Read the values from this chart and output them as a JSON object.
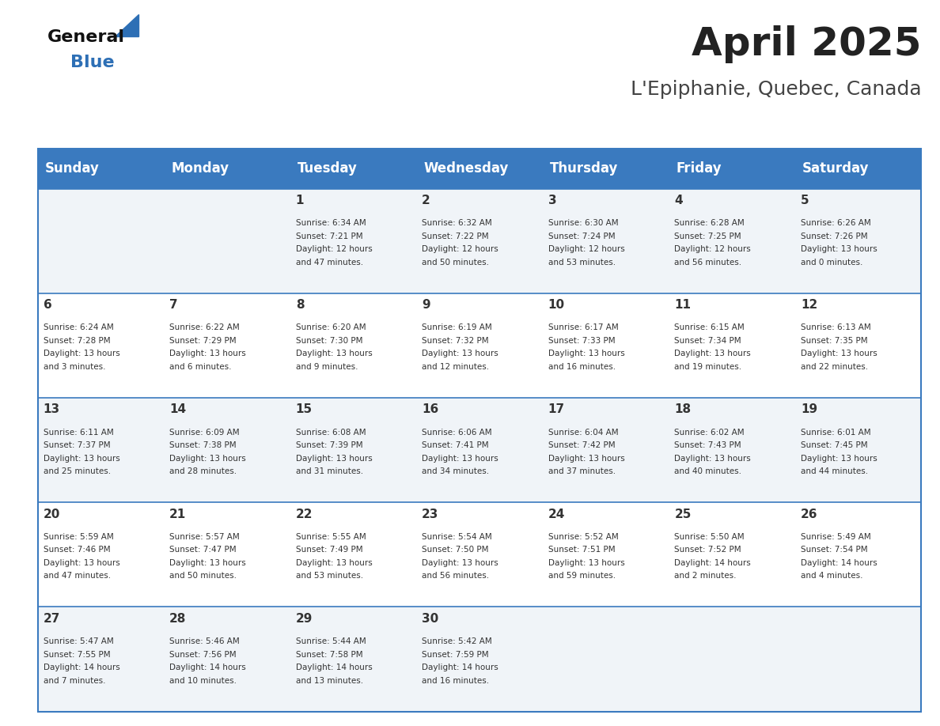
{
  "title": "April 2025",
  "subtitle": "L'Epiphanie, Quebec, Canada",
  "header_bg_color": "#3a7abf",
  "header_text_color": "#ffffff",
  "weekdays": [
    "Sunday",
    "Monday",
    "Tuesday",
    "Wednesday",
    "Thursday",
    "Friday",
    "Saturday"
  ],
  "cell_bg_even": "#f0f4f8",
  "cell_bg_odd": "#ffffff",
  "row_line_color": "#3a7abf",
  "text_color": "#333333",
  "days": [
    {
      "day": null,
      "sunrise": null,
      "sunset": null,
      "daylight": null
    },
    {
      "day": null,
      "sunrise": null,
      "sunset": null,
      "daylight": null
    },
    {
      "day": 1,
      "sunrise": "6:34 AM",
      "sunset": "7:21 PM",
      "daylight": "12 hours and 47 minutes."
    },
    {
      "day": 2,
      "sunrise": "6:32 AM",
      "sunset": "7:22 PM",
      "daylight": "12 hours and 50 minutes."
    },
    {
      "day": 3,
      "sunrise": "6:30 AM",
      "sunset": "7:24 PM",
      "daylight": "12 hours and 53 minutes."
    },
    {
      "day": 4,
      "sunrise": "6:28 AM",
      "sunset": "7:25 PM",
      "daylight": "12 hours and 56 minutes."
    },
    {
      "day": 5,
      "sunrise": "6:26 AM",
      "sunset": "7:26 PM",
      "daylight": "13 hours and 0 minutes."
    },
    {
      "day": 6,
      "sunrise": "6:24 AM",
      "sunset": "7:28 PM",
      "daylight": "13 hours and 3 minutes."
    },
    {
      "day": 7,
      "sunrise": "6:22 AM",
      "sunset": "7:29 PM",
      "daylight": "13 hours and 6 minutes."
    },
    {
      "day": 8,
      "sunrise": "6:20 AM",
      "sunset": "7:30 PM",
      "daylight": "13 hours and 9 minutes."
    },
    {
      "day": 9,
      "sunrise": "6:19 AM",
      "sunset": "7:32 PM",
      "daylight": "13 hours and 12 minutes."
    },
    {
      "day": 10,
      "sunrise": "6:17 AM",
      "sunset": "7:33 PM",
      "daylight": "13 hours and 16 minutes."
    },
    {
      "day": 11,
      "sunrise": "6:15 AM",
      "sunset": "7:34 PM",
      "daylight": "13 hours and 19 minutes."
    },
    {
      "day": 12,
      "sunrise": "6:13 AM",
      "sunset": "7:35 PM",
      "daylight": "13 hours and 22 minutes."
    },
    {
      "day": 13,
      "sunrise": "6:11 AM",
      "sunset": "7:37 PM",
      "daylight": "13 hours and 25 minutes."
    },
    {
      "day": 14,
      "sunrise": "6:09 AM",
      "sunset": "7:38 PM",
      "daylight": "13 hours and 28 minutes."
    },
    {
      "day": 15,
      "sunrise": "6:08 AM",
      "sunset": "7:39 PM",
      "daylight": "13 hours and 31 minutes."
    },
    {
      "day": 16,
      "sunrise": "6:06 AM",
      "sunset": "7:41 PM",
      "daylight": "13 hours and 34 minutes."
    },
    {
      "day": 17,
      "sunrise": "6:04 AM",
      "sunset": "7:42 PM",
      "daylight": "13 hours and 37 minutes."
    },
    {
      "day": 18,
      "sunrise": "6:02 AM",
      "sunset": "7:43 PM",
      "daylight": "13 hours and 40 minutes."
    },
    {
      "day": 19,
      "sunrise": "6:01 AM",
      "sunset": "7:45 PM",
      "daylight": "13 hours and 44 minutes."
    },
    {
      "day": 20,
      "sunrise": "5:59 AM",
      "sunset": "7:46 PM",
      "daylight": "13 hours and 47 minutes."
    },
    {
      "day": 21,
      "sunrise": "5:57 AM",
      "sunset": "7:47 PM",
      "daylight": "13 hours and 50 minutes."
    },
    {
      "day": 22,
      "sunrise": "5:55 AM",
      "sunset": "7:49 PM",
      "daylight": "13 hours and 53 minutes."
    },
    {
      "day": 23,
      "sunrise": "5:54 AM",
      "sunset": "7:50 PM",
      "daylight": "13 hours and 56 minutes."
    },
    {
      "day": 24,
      "sunrise": "5:52 AM",
      "sunset": "7:51 PM",
      "daylight": "13 hours and 59 minutes."
    },
    {
      "day": 25,
      "sunrise": "5:50 AM",
      "sunset": "7:52 PM",
      "daylight": "14 hours and 2 minutes."
    },
    {
      "day": 26,
      "sunrise": "5:49 AM",
      "sunset": "7:54 PM",
      "daylight": "14 hours and 4 minutes."
    },
    {
      "day": 27,
      "sunrise": "5:47 AM",
      "sunset": "7:55 PM",
      "daylight": "14 hours and 7 minutes."
    },
    {
      "day": 28,
      "sunrise": "5:46 AM",
      "sunset": "7:56 PM",
      "daylight": "14 hours and 10 minutes."
    },
    {
      "day": 29,
      "sunrise": "5:44 AM",
      "sunset": "7:58 PM",
      "daylight": "14 hours and 13 minutes."
    },
    {
      "day": 30,
      "sunrise": "5:42 AM",
      "sunset": "7:59 PM",
      "daylight": "14 hours and 16 minutes."
    },
    {
      "day": null,
      "sunrise": null,
      "sunset": null,
      "daylight": null
    },
    {
      "day": null,
      "sunrise": null,
      "sunset": null,
      "daylight": null
    },
    {
      "day": null,
      "sunrise": null,
      "sunset": null,
      "daylight": null
    }
  ],
  "logo_general_color": "#111111",
  "logo_blue_color": "#2d6fb5",
  "logo_triangle_color": "#2d6fb5"
}
